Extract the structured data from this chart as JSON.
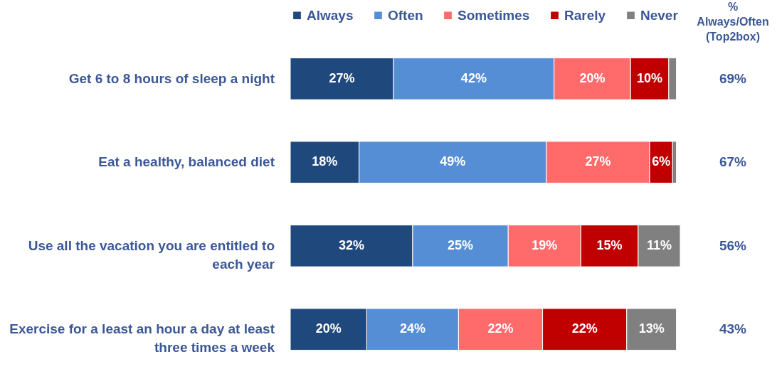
{
  "chart_data": {
    "type": "bar",
    "orientation": "horizontal",
    "stacked": true,
    "categories": [
      "Get 6 to 8 hours of sleep a night",
      "Eat a healthy, balanced diet",
      "Use all the vacation you are entitled to each year",
      "Exercise for a least an hour a day at least three times a week"
    ],
    "series": [
      {
        "name": "Always",
        "color": "#1f497d",
        "values": [
          27,
          18,
          32,
          20
        ],
        "value_labels": [
          "27%",
          "18%",
          "32%",
          "20%"
        ]
      },
      {
        "name": "Often",
        "color": "#558ed5",
        "values": [
          42,
          49,
          25,
          24
        ],
        "value_labels": [
          "42%",
          "49%",
          "25%",
          "24%"
        ]
      },
      {
        "name": "Sometimes",
        "color": "#ff6b6b",
        "values": [
          20,
          27,
          19,
          22
        ],
        "value_labels": [
          "20%",
          "27%",
          "19%",
          "22%"
        ]
      },
      {
        "name": "Rarely",
        "color": "#c00000",
        "values": [
          10,
          6,
          15,
          22
        ],
        "value_labels": [
          "10%",
          "6%",
          "15%",
          "22%"
        ]
      },
      {
        "name": "Never",
        "color": "#808080",
        "values": [
          2,
          1,
          11,
          13
        ],
        "value_labels": [
          null,
          null,
          "11%",
          "13%"
        ]
      }
    ],
    "legend": "top",
    "annotations": [
      "% Always/Often (Top2box)",
      "69%",
      "67%",
      "56%",
      "43%"
    ]
  }
}
